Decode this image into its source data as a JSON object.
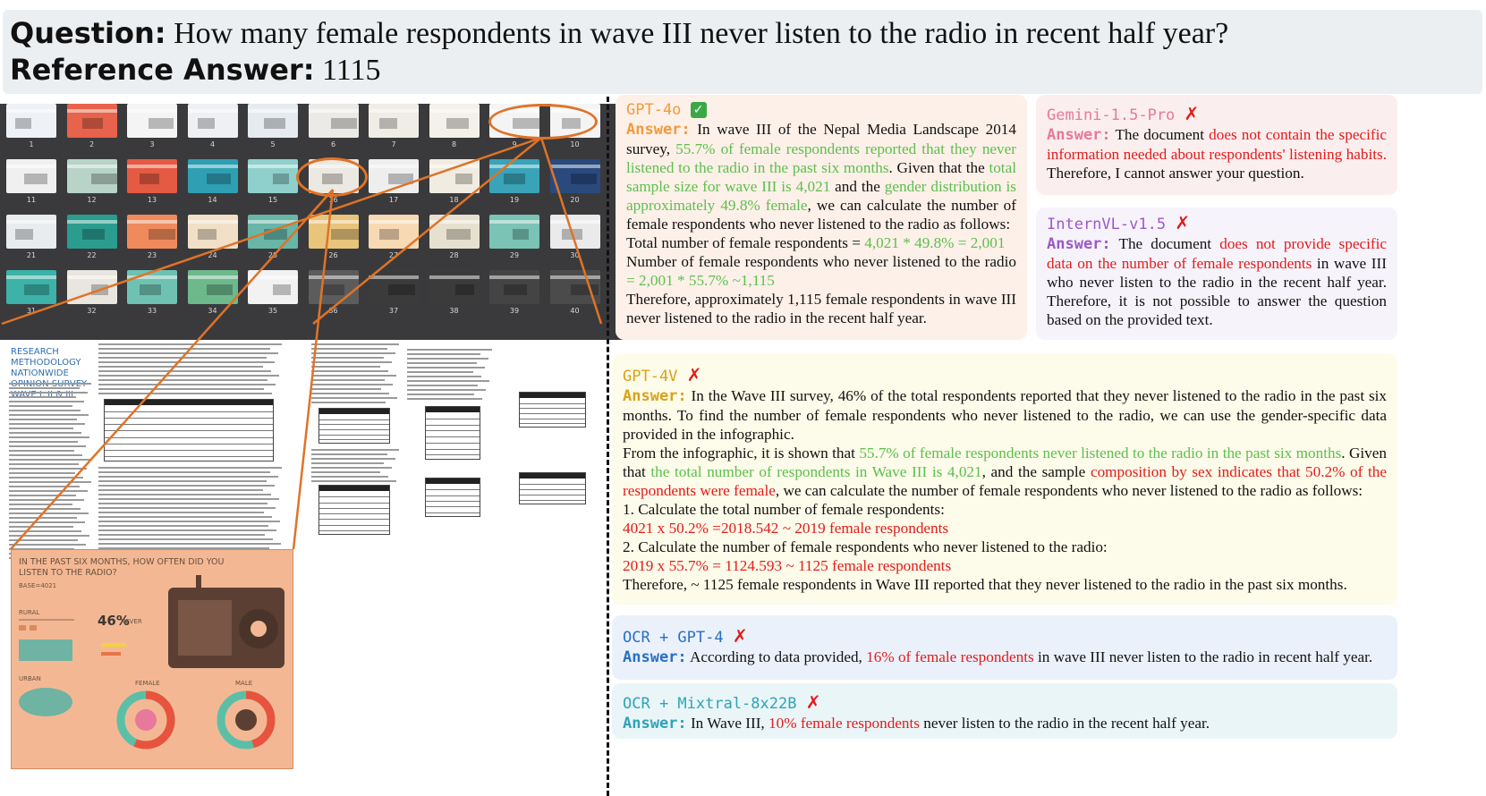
{
  "header": {
    "question_label": "Question:",
    "question_text": "How many female respondents in wave III never listen to the radio in recent half year?",
    "answer_label": "Reference Answer:",
    "answer_text": "1115"
  },
  "thumbnails": {
    "numbers": [
      "1",
      "2",
      "3",
      "4",
      "5",
      "6",
      "7",
      "8",
      "9",
      "10",
      "11",
      "12",
      "13",
      "14",
      "15",
      "16",
      "17",
      "18",
      "19",
      "20",
      "21",
      "22",
      "23",
      "24",
      "25",
      "26",
      "27",
      "28",
      "29",
      "30",
      "31",
      "32",
      "33",
      "34",
      "35",
      "36",
      "37",
      "38",
      "39",
      "40"
    ],
    "colors": [
      "#eef2f7",
      "#e8634b",
      "#f4f4f4",
      "#eef0f3",
      "#e6ebf0",
      "#eceae6",
      "#f0ede6",
      "#f4f1ea",
      "#f4f4f4",
      "#f4f4f4",
      "#f0f0f0",
      "#b8d3c8",
      "#e55a43",
      "#2f9fb3",
      "#8fd0cc",
      "#ece8e2",
      "#eeeeee",
      "#f1ece2",
      "#39a3b7",
      "#2a4a7e",
      "#e8ecef",
      "#2a9d8f",
      "#f08a5d",
      "#f1dfc7",
      "#67b6a8",
      "#e9c47b",
      "#f7d9b3",
      "#e8e0cf",
      "#7ac3b5",
      "#eaeaea",
      "#3cb2a8",
      "#e8e6df",
      "#6fc2b2",
      "#6db98c",
      "#f2f2f2",
      "#5c5c5c",
      "#3b3b3b",
      "#3b3b3b",
      "#444444",
      "#4b4b4b"
    ]
  },
  "document": {
    "page1_title": "RESEARCH METHODOLOGY NATIONWIDE OPINION SURVEY WAVE I, II & III"
  },
  "infographic": {
    "title": "IN THE PAST SIX MONTHS, HOW OFTEN DID YOU LISTEN TO THE RADIO?",
    "base": "BASE=4021",
    "rural": "RURAL",
    "urban": "URBAN",
    "never": "NEVER",
    "female": "FEMALE",
    "male": "MALE",
    "pct46": "46%"
  },
  "answers": {
    "gpt4o": {
      "name": "GPT-4o",
      "label": "Answer:",
      "p1": "In wave III of the Nepal Media Landscape 2014 survey, ",
      "p1_g1": "55.7% of female respondents reported that they never listened to the radio in the past six months",
      "p1_b": ". Given that the ",
      "p1_g2": "total sample size for wave III is 4,021",
      "p1_c": " and the ",
      "p1_g3": "gender distribution is approximately 49.8% female",
      "p1_d": ", we can calculate the number of female respondents who never listened to the radio as follows:",
      "p2_a": "Total number of female respondents = ",
      "p2_g": "4,021 * 49.8% = 2,001",
      "p3_a": "Number of female respondents who never listened to the radio ",
      "p3_g": "= 2,001 * 55.7% ~1,115",
      "p4": "Therefore, approximately 1,115 female respondents in wave III never listened to the radio in the recent half year."
    },
    "gemini": {
      "name": "Gemini-1.5-Pro",
      "label": "Answer:",
      "a": "The document ",
      "r": "does not contain the specific information needed about respondents' listening habits.",
      "b": " Therefore, I cannot answer your question."
    },
    "internvl": {
      "name": "InternVL-v1.5",
      "label": "Answer:",
      "a": "The document ",
      "r1": "does not provide specific data on the number of female respondents",
      "b": " in wave III who never listen to the radio in the recent half year. Therefore, it is not possible to answer the question based on the provided text."
    },
    "gpt4v": {
      "name": "GPT-4V",
      "label": "Answer:",
      "p1": "In the Wave III survey, 46% of the total respondents reported that they never listened to the radio in the past six months. To find the number of female respondents who never listened to the radio, we can use the gender-specific data provided in the infographic.",
      "p2_a": "From the infographic, it is shown that ",
      "p2_g1": "55.7% of female respondents never listened to the radio in the past six months",
      "p2_b": ". Given that ",
      "p2_g2": "the total number of respondents in Wave III is 4,021",
      "p2_c": ", and the sample ",
      "p2_r": "composition by sex indicates that 50.2% of the respondents were female",
      "p2_d": ", we can calculate the number of female respondents who never listened to the radio as follows:",
      "s1": "1. Calculate the total number of female respondents:",
      "s1_r": "4021 x 50.2% =2018.542 ~ 2019 female respondents",
      "s2": "2. Calculate the number of female respondents who never listened to the radio:",
      "s2_r": "2019 x 55.7% = 1124.593 ~ 1125 female respondents",
      "p3": "Therefore,  ~ 1125 female respondents in Wave III reported that they never listened to the radio in the past six months."
    },
    "ocr_gpt4": {
      "name": "OCR + GPT-4",
      "label": "Answer:",
      "a": "According to data provided, ",
      "r": "16% of female respondents",
      "b": " in wave III never listen to the radio in recent half year."
    },
    "ocr_mixtral": {
      "name": "OCR + Mixtral-8x22B",
      "label": "Answer:",
      "a": "In Wave III, ",
      "r": "10% female respondents",
      "b": " never listen to the radio in the recent half year."
    }
  },
  "colors": {
    "gpt4o_name": "#f29a3c",
    "gpt4o_bg": "#fdf0e8",
    "gemini_name": "#e8789c",
    "gemini_bg": "#fbeeee",
    "internvl_name": "#9b59c6",
    "internvl_bg": "#f7f3fb",
    "gpt4v_name": "#d9a21b",
    "gpt4v_bg": "#fdfbe9",
    "ocr_gpt4_name": "#2a6fc6",
    "ocr_gpt4_bg": "#eaf1fa",
    "ocr_mixtral_name": "#2fa3b8",
    "ocr_mixtral_bg": "#eaf5f8",
    "green": "#5cbf4f",
    "red": "#e31b1b",
    "highlight": "#e07327"
  }
}
